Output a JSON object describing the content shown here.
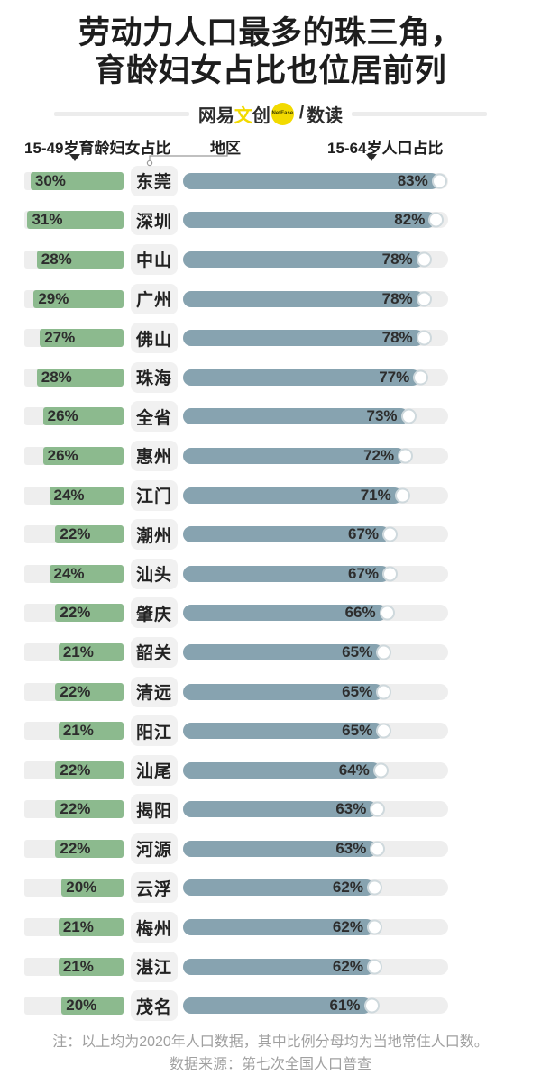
{
  "title": {
    "line1": "劳动力人口最多的珠三角，",
    "line2": "育龄妇女占比也位居前列"
  },
  "brand": {
    "prefix": "网易",
    "accent": "文",
    "suffix": "创",
    "badge": "NetEase",
    "separator": "/",
    "product": "数读"
  },
  "columns": {
    "left": "15-49岁育龄妇女占比",
    "center": "地区",
    "right": "15-64岁人口占比"
  },
  "chart_data": {
    "type": "bar",
    "layout": "diverging-horizontal",
    "value_suffix": "%",
    "categories": [
      "东莞",
      "深圳",
      "中山",
      "广州",
      "佛山",
      "珠海",
      "全省",
      "惠州",
      "江门",
      "潮州",
      "汕头",
      "肇庆",
      "韶关",
      "清远",
      "阳江",
      "汕尾",
      "揭阳",
      "河源",
      "云浮",
      "梅州",
      "湛江",
      "茂名"
    ],
    "series": [
      {
        "name": "15-49岁育龄妇女占比",
        "side": "left",
        "unit": "%",
        "axis_max": 32,
        "color": "#8cba8e",
        "values": [
          30,
          31,
          28,
          29,
          27,
          28,
          26,
          26,
          24,
          22,
          24,
          22,
          21,
          22,
          21,
          22,
          22,
          22,
          20,
          21,
          21,
          20
        ]
      },
      {
        "name": "15-64岁人口占比",
        "side": "right",
        "unit": "%",
        "axis_max": 86,
        "color": "#87a3b0",
        "values": [
          83,
          82,
          78,
          78,
          78,
          77,
          73,
          72,
          71,
          67,
          67,
          66,
          65,
          65,
          65,
          64,
          63,
          63,
          62,
          62,
          62,
          61
        ]
      }
    ]
  },
  "footer": {
    "note": "注：以上均为2020年人口数据，其中比例分母均为当地常住人口数。",
    "source": "数据来源：第七次全国人口普查"
  },
  "colors": {
    "green_bar": "#8cba8e",
    "blue_bar": "#87a3b0",
    "track": "#eeeeee",
    "label_box": "#f1f1f1",
    "text_dark": "#1d1d1d",
    "value_text": "#2d2d2d",
    "footer_text": "#a0a0a0",
    "brand_yellow": "#f2da00",
    "divider_line": "#ececec",
    "dot_ring": "#cfd9dd"
  }
}
